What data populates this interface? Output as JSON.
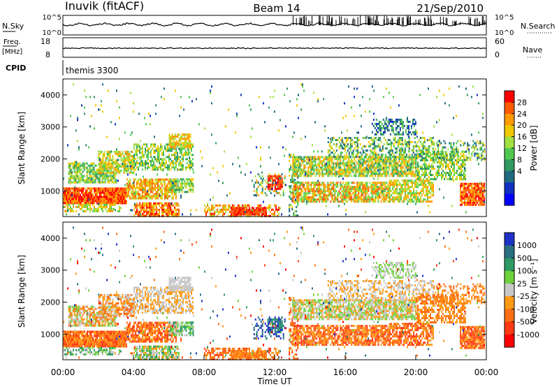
{
  "header": {
    "station": "Inuvik (fitACF)",
    "beam": "Beam 14",
    "date": "21/Sep/2010"
  },
  "nsky_panel": {
    "left_label": "N.Sky",
    "left_ticks": [
      "10^5",
      "10^0"
    ],
    "right_label": "N.Search",
    "right_ticks": [
      "10^5",
      "10^0"
    ]
  },
  "freq_panel": {
    "left_label_line1": "Freq.",
    "left_label_line2": "[MHz]",
    "left_ticks": [
      "18",
      "8"
    ],
    "right_label": "Nave",
    "right_ticks": [
      "60",
      "0"
    ]
  },
  "cpid_panel": {
    "label": "CPID",
    "value": "themis 3300"
  },
  "chart_data": [
    {
      "type": "heatmap",
      "name": "power",
      "ylabel": "Slant Range [km]",
      "xlabel": "",
      "ylim": [
        200,
        4500
      ],
      "yticks": [
        1000,
        2000,
        3000,
        4000
      ],
      "xlim": [
        0,
        24
      ],
      "colorbar_label": "Power [dB]",
      "colorbar_ticks": [
        "28",
        "24",
        "20",
        "16",
        "12",
        "8",
        "4"
      ],
      "colorbar_colors": [
        "#ff0000",
        "#ff5a00",
        "#ff9a00",
        "#f0c800",
        "#a0e040",
        "#50c850",
        "#309a60",
        "#206a80",
        "#1030c0",
        "#0000ff"
      ]
    },
    {
      "type": "heatmap",
      "name": "velocity",
      "ylabel": "Slant Range [km]",
      "xlabel": "Time UT",
      "ylim": [
        200,
        4500
      ],
      "yticks": [
        1000,
        2000,
        3000,
        4000
      ],
      "xlim": [
        0,
        24
      ],
      "xticks": [
        "00:00",
        "04:00",
        "08:00",
        "12:00",
        "16:00",
        "20:00",
        "00:00"
      ],
      "colorbar_label": "Velocity [m s⁻¹]",
      "colorbar_ticks": [
        "1000",
        "500",
        "100",
        "25",
        "-25",
        "-100",
        "-500",
        "-1000"
      ],
      "colorbar_colors": [
        "#1e32c8",
        "#2a6e82",
        "#2e9a64",
        "#6ed23c",
        "#c8c8c8",
        "#ff9a14",
        "#ff6e14",
        "#ff3a14",
        "#ff0000"
      ]
    }
  ]
}
